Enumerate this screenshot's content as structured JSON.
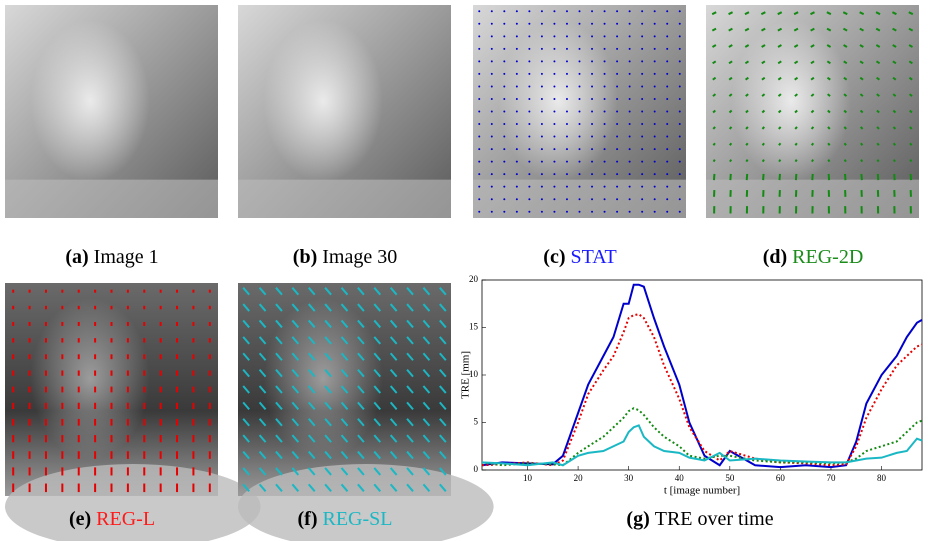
{
  "panels": [
    {
      "label": "(a)",
      "caption": "Image 1",
      "color": "#000000"
    },
    {
      "label": "(b)",
      "caption": "Image 30",
      "color": "#000000"
    },
    {
      "label": "(c)",
      "caption": "STAT",
      "color": "#1a1aff"
    },
    {
      "label": "(d)",
      "caption": "REG-2D",
      "color": "#1a8c1a"
    },
    {
      "label": "(e)",
      "caption": "REG-L",
      "color": "#ff1a1a"
    },
    {
      "label": "(f)",
      "caption": "REG-SL",
      "color": "#1ab8c4"
    },
    {
      "label": "(g)",
      "caption": "TRE over time",
      "color": "#000000"
    }
  ],
  "chart_data": {
    "type": "line",
    "x_label": "t [image number]",
    "y_label": "TRE [mm]",
    "x": [
      1,
      5,
      10,
      15,
      17,
      20,
      22,
      25,
      27,
      29,
      30,
      31,
      32,
      33,
      35,
      37,
      40,
      42,
      45,
      48,
      50,
      55,
      60,
      65,
      70,
      73,
      75,
      77,
      80,
      83,
      85,
      87,
      88
    ],
    "series": [
      {
        "color": "#0000cc",
        "linestyle": "solid",
        "values": [
          0.5,
          0.8,
          0.7,
          0.6,
          1.5,
          6,
          9,
          12,
          14,
          17.5,
          17.5,
          19.5,
          19.5,
          19.3,
          16,
          13,
          9,
          5,
          1.5,
          0.5,
          2,
          0.5,
          0.3,
          0.5,
          0.3,
          0.5,
          3,
          7,
          10,
          12,
          14,
          15.5,
          15.8
        ]
      },
      {
        "color": "#e60000",
        "linestyle": "dotted",
        "values": [
          0.5,
          0.6,
          0.8,
          0.5,
          1,
          5,
          8,
          10.5,
          12,
          14.5,
          16,
          16.3,
          16.4,
          16,
          14,
          11,
          7.5,
          4.5,
          2,
          1,
          2,
          1.2,
          0.8,
          0.7,
          0.5,
          0.6,
          2.5,
          5.5,
          8.5,
          11,
          12,
          13,
          13.2
        ]
      },
      {
        "color": "#138a13",
        "linestyle": "dotted",
        "values": [
          0.8,
          0.5,
          0.7,
          0.6,
          0.5,
          1.8,
          2.5,
          3.5,
          4.5,
          5.5,
          6.2,
          6.5,
          6.3,
          5.8,
          4.5,
          3.5,
          2.5,
          1.5,
          1.2,
          1.5,
          1.5,
          1,
          0.8,
          0.8,
          0.7,
          0.8,
          1.2,
          2,
          2.5,
          3,
          4,
          5,
          5.2
        ]
      },
      {
        "color": "#1ab8c4",
        "linestyle": "solid",
        "values": [
          0.8,
          0.7,
          0.5,
          0.8,
          0.5,
          1.5,
          1.8,
          2,
          2.5,
          3,
          4,
          4.5,
          4.7,
          3.5,
          2.5,
          2,
          1.8,
          1.3,
          1,
          1.8,
          1,
          1.2,
          1,
          0.9,
          0.8,
          0.8,
          1,
          1.2,
          1.3,
          1.8,
          2,
          3.3,
          3.1
        ]
      }
    ],
    "xlim": [
      1,
      88
    ],
    "ylim": [
      0,
      20
    ],
    "xticks": [
      10,
      20,
      30,
      40,
      50,
      60,
      70,
      80
    ],
    "yticks": [
      0,
      5,
      10,
      15,
      20
    ]
  }
}
